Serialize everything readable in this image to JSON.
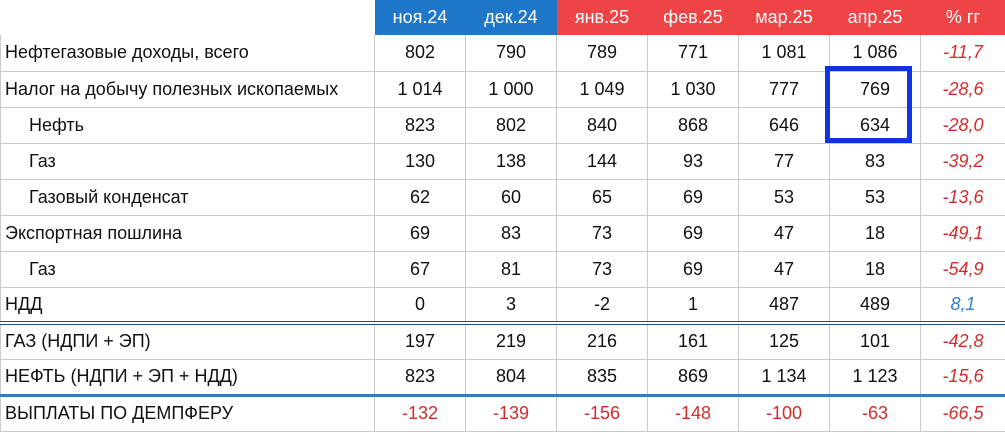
{
  "table": {
    "columns": [
      "ноя.24",
      "дек.24",
      "янв.25",
      "фев.25",
      "мар.25",
      "апр.25",
      "% гг"
    ],
    "rows": [
      {
        "label": "Нефтегазовые доходы, всего",
        "values": [
          "802",
          "790",
          "789",
          "771",
          "1 081",
          "1 086"
        ],
        "pct": "-11,7"
      },
      {
        "label": "Налог на добычу полезных ископаемых",
        "values": [
          "1 014",
          "1 000",
          "1 049",
          "1 030",
          "777",
          "769"
        ],
        "pct": "-28,6"
      },
      {
        "label": "Нефть",
        "values": [
          "823",
          "802",
          "840",
          "868",
          "646",
          "634"
        ],
        "pct": "-28,0"
      },
      {
        "label": "Газ",
        "values": [
          "130",
          "138",
          "144",
          "93",
          "77",
          "83"
        ],
        "pct": "-39,2"
      },
      {
        "label": "Газовый конденсат",
        "values": [
          "62",
          "60",
          "65",
          "69",
          "53",
          "53"
        ],
        "pct": "-13,6"
      },
      {
        "label": "Экспортная пошлина",
        "values": [
          "69",
          "83",
          "73",
          "69",
          "47",
          "18"
        ],
        "pct": "-49,1"
      },
      {
        "label": "Газ",
        "values": [
          "67",
          "81",
          "73",
          "69",
          "47",
          "18"
        ],
        "pct": "-54,9"
      },
      {
        "label": "НДД",
        "values": [
          "0",
          "3",
          "-2",
          "1",
          "487",
          "489"
        ],
        "pct": "8,1"
      },
      {
        "label": "ГАЗ (НДПИ + ЭП)",
        "values": [
          "197",
          "219",
          "216",
          "161",
          "125",
          "101"
        ],
        "pct": "-42,8"
      },
      {
        "label": "НЕФТЬ (НДПИ + ЭП + НДД)",
        "values": [
          "823",
          "804",
          "835",
          "869",
          "1 134",
          "1 123"
        ],
        "pct": "-15,6"
      },
      {
        "label": "ВЫПЛАТЫ ПО ДЕМПФЕРУ",
        "values": [
          "-132",
          "-139",
          "-156",
          "-148",
          "-100",
          "-63"
        ],
        "pct": "-66,5"
      }
    ]
  },
  "colors": {
    "header_blue": "#1f77c9",
    "header_red": "#ef4446",
    "highlight": "#1133e6",
    "negative": "#d52b2b",
    "positive": "#2f7fd4"
  }
}
